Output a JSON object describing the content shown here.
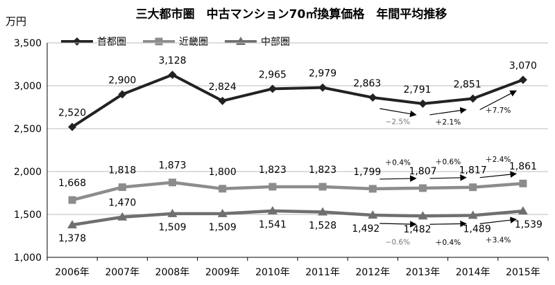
{
  "chart_data": {
    "type": "line",
    "title": "三大都市圏　中古マンション70㎡換算価格　年間平均推移",
    "unit_label": "万円",
    "categories": [
      "2006年",
      "2007年",
      "2008年",
      "2009年",
      "2010年",
      "2011年",
      "2012年",
      "2013年",
      "2014年",
      "2015年"
    ],
    "ylim": [
      1000,
      3500
    ],
    "yticks": [
      "1,000",
      "1,500",
      "2,000",
      "2,500",
      "3,000",
      "3,500"
    ],
    "ytick_values": [
      1000,
      1500,
      2000,
      2500,
      3000,
      3500
    ],
    "grid": "horizontal",
    "legend_position": "top-left",
    "series": [
      {
        "name": "首都圏",
        "color": "#222222",
        "marker": "diamond",
        "values": [
          2520,
          2900,
          3128,
          2824,
          2965,
          2979,
          2863,
          2791,
          2851,
          3070
        ],
        "labels": [
          "2,520",
          "2,900",
          "3,128",
          "2,824",
          "2,965",
          "2,979",
          "2,863",
          "2,791",
          "2,851",
          "3,070"
        ]
      },
      {
        "name": "近畿圏",
        "color": "#8c8c8c",
        "marker": "square",
        "values": [
          1668,
          1818,
          1873,
          1800,
          1823,
          1823,
          1799,
          1807,
          1817,
          1861
        ],
        "labels": [
          "1,668",
          "1,818",
          "1,873",
          "1,800",
          "1,823",
          "1,823",
          "1,799",
          "1,807",
          "1,817",
          "1,861"
        ]
      },
      {
        "name": "中部圏",
        "color": "#6f6f6f",
        "marker": "triangle",
        "values": [
          1378,
          1470,
          1509,
          1509,
          1541,
          1528,
          1492,
          1482,
          1489,
          1539
        ],
        "labels": [
          "1,378",
          "1,470",
          "1,509",
          "1,509",
          "1,541",
          "1,528",
          "1,492",
          "1,482",
          "1,489",
          "1,539"
        ]
      }
    ],
    "annotations": [
      {
        "text": "−2.5%",
        "series": 0,
        "between": [
          6,
          7
        ],
        "color": "#777777"
      },
      {
        "text": "＋2.1%",
        "series": 0,
        "between": [
          7,
          8
        ],
        "color": "#000000"
      },
      {
        "text": "＋7.7%",
        "series": 0,
        "between": [
          8,
          9
        ],
        "color": "#000000"
      },
      {
        "text": "＋0.4%",
        "series": 1,
        "between": [
          6,
          7
        ],
        "color": "#000000"
      },
      {
        "text": "＋0.6%",
        "series": 1,
        "between": [
          7,
          8
        ],
        "color": "#000000"
      },
      {
        "text": "＋2.4%",
        "series": 1,
        "between": [
          8,
          9
        ],
        "color": "#000000"
      },
      {
        "text": "−0.6%",
        "series": 2,
        "between": [
          6,
          7
        ],
        "color": "#777777"
      },
      {
        "text": "＋0.4%",
        "series": 2,
        "between": [
          7,
          8
        ],
        "color": "#000000"
      },
      {
        "text": "＋3.4%",
        "series": 2,
        "between": [
          8,
          9
        ],
        "color": "#000000"
      }
    ]
  }
}
